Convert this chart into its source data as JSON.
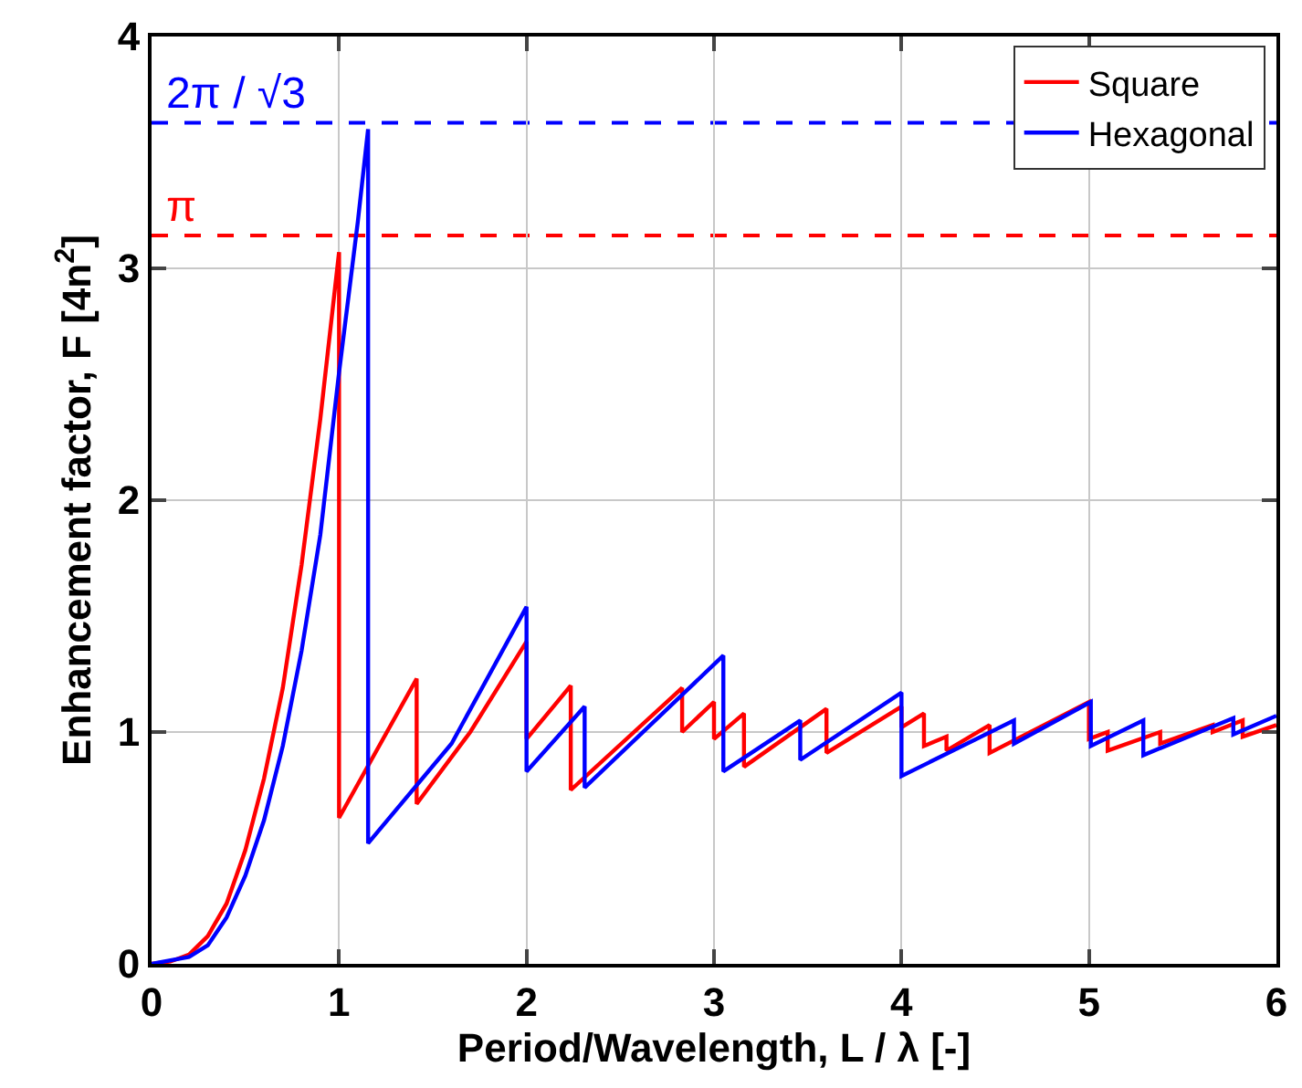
{
  "chart_data": {
    "type": "line",
    "xlabel": "Period/Wavelength, L / λ [-]",
    "ylabel": "Enhancement factor, F [4n$^{2}$]",
    "xlim": [
      0,
      6
    ],
    "xticks": [
      0,
      1,
      2,
      3,
      4,
      5,
      6
    ],
    "ylim": [
      0,
      4
    ],
    "yticks": [
      0,
      1,
      2,
      3,
      4
    ],
    "grid": true,
    "legend": "top right",
    "line_style": "solid",
    "marker": "none",
    "series": [
      {
        "name": "Square",
        "color": "#ff0000",
        "x": [
          0,
          0.1,
          0.2,
          0.3,
          0.4,
          0.5,
          0.6,
          0.7,
          0.8,
          0.9,
          1.0,
          1.0,
          1.414,
          1.414,
          1.7,
          2.0,
          2.0,
          2.236,
          2.236,
          2.83,
          2.83,
          3.0,
          3.0,
          3.16,
          3.16,
          3.6,
          3.6,
          4.0,
          4.0,
          4.12,
          4.12,
          4.24,
          4.24,
          4.47,
          4.47,
          5.0,
          5.0,
          5.1,
          5.1,
          5.38,
          5.38,
          5.66,
          5.66,
          5.82,
          5.82,
          6.0
        ],
        "values": [
          0,
          0.01,
          0.04,
          0.12,
          0.26,
          0.49,
          0.8,
          1.19,
          1.72,
          2.35,
          3.07,
          0.63,
          1.23,
          0.69,
          1.0,
          1.39,
          0.97,
          1.2,
          0.75,
          1.19,
          1.0,
          1.13,
          0.97,
          1.08,
          0.85,
          1.1,
          0.91,
          1.11,
          1.02,
          1.08,
          0.94,
          0.98,
          0.92,
          1.03,
          0.91,
          1.13,
          0.97,
          1.0,
          0.92,
          1.0,
          0.95,
          1.03,
          1.0,
          1.05,
          0.98,
          1.03
        ]
      },
      {
        "name": "Hexagonal",
        "color": "#0000ff",
        "x": [
          0,
          0.2,
          0.3,
          0.4,
          0.5,
          0.6,
          0.7,
          0.8,
          0.9,
          1.0,
          1.1,
          1.155,
          1.155,
          1.6,
          2.0,
          2.0,
          2.31,
          2.31,
          3.05,
          3.05,
          3.46,
          3.46,
          4.0,
          4.0,
          4.6,
          4.6,
          5.01,
          5.01,
          5.29,
          5.29,
          5.77,
          5.77,
          6.0
        ],
        "values": [
          0,
          0.03,
          0.08,
          0.2,
          0.38,
          0.62,
          0.94,
          1.35,
          1.85,
          2.55,
          3.2,
          3.6,
          0.52,
          0.95,
          1.54,
          0.83,
          1.11,
          0.76,
          1.33,
          0.83,
          1.05,
          0.88,
          1.17,
          0.81,
          1.05,
          0.95,
          1.13,
          0.94,
          1.05,
          0.9,
          1.06,
          0.99,
          1.07
        ]
      }
    ],
    "ref_lines": [
      {
        "axis": "y",
        "value": 3.14159,
        "label": "π",
        "color": "#ff0000",
        "line_style": "dashed"
      },
      {
        "axis": "y",
        "value": 3.6276,
        "label": "2π / √3",
        "color": "#0000ff",
        "line_style": "dashed"
      }
    ]
  }
}
